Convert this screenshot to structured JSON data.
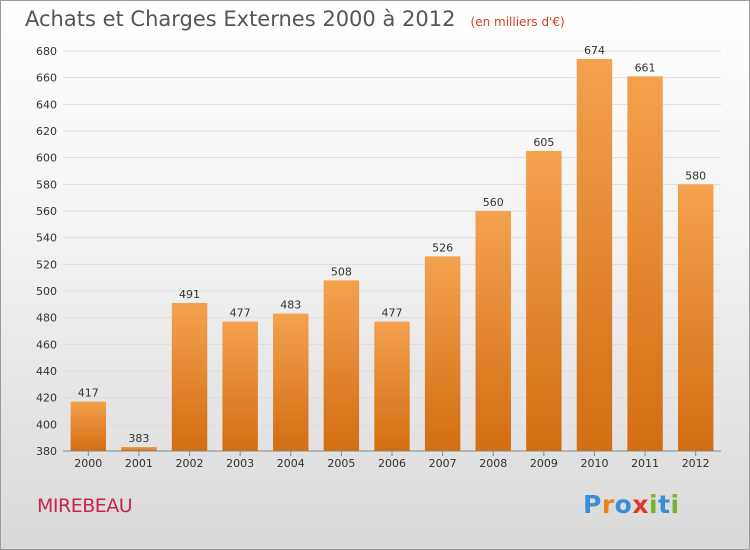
{
  "title": "Achats et Charges Externes 2000 à 2012",
  "unit": "(en milliers d'€)",
  "commune": "MIREBEAU",
  "logo": {
    "text": "Proxiti",
    "letters": [
      {
        "ch": "P",
        "color": "#3b8fd6"
      },
      {
        "ch": "r",
        "color": "#e6841c"
      },
      {
        "ch": "o",
        "color": "#3b8fd6"
      },
      {
        "ch": "x",
        "color": "#e0382a"
      },
      {
        "ch": "i",
        "color": "#79b530"
      },
      {
        "ch": "t",
        "color": "#3b8fd6"
      },
      {
        "ch": "i",
        "color": "#79b530"
      }
    ]
  },
  "colors": {
    "bar_top": "#f4a14e",
    "bar_bottom": "#d46d12",
    "grid": "#dddddd",
    "axis_text": "#333333"
  },
  "chart_data": {
    "type": "bar",
    "categories": [
      "2000",
      "2001",
      "2002",
      "2003",
      "2004",
      "2005",
      "2006",
      "2007",
      "2008",
      "2009",
      "2010",
      "2011",
      "2012"
    ],
    "values": [
      417,
      383,
      491,
      477,
      483,
      508,
      477,
      526,
      560,
      605,
      674,
      661,
      580
    ],
    "ylim": [
      380,
      680
    ],
    "yticks": [
      380,
      400,
      420,
      440,
      460,
      480,
      500,
      520,
      540,
      560,
      580,
      600,
      620,
      640,
      660,
      680
    ],
    "grid": true,
    "data_labels": true
  }
}
